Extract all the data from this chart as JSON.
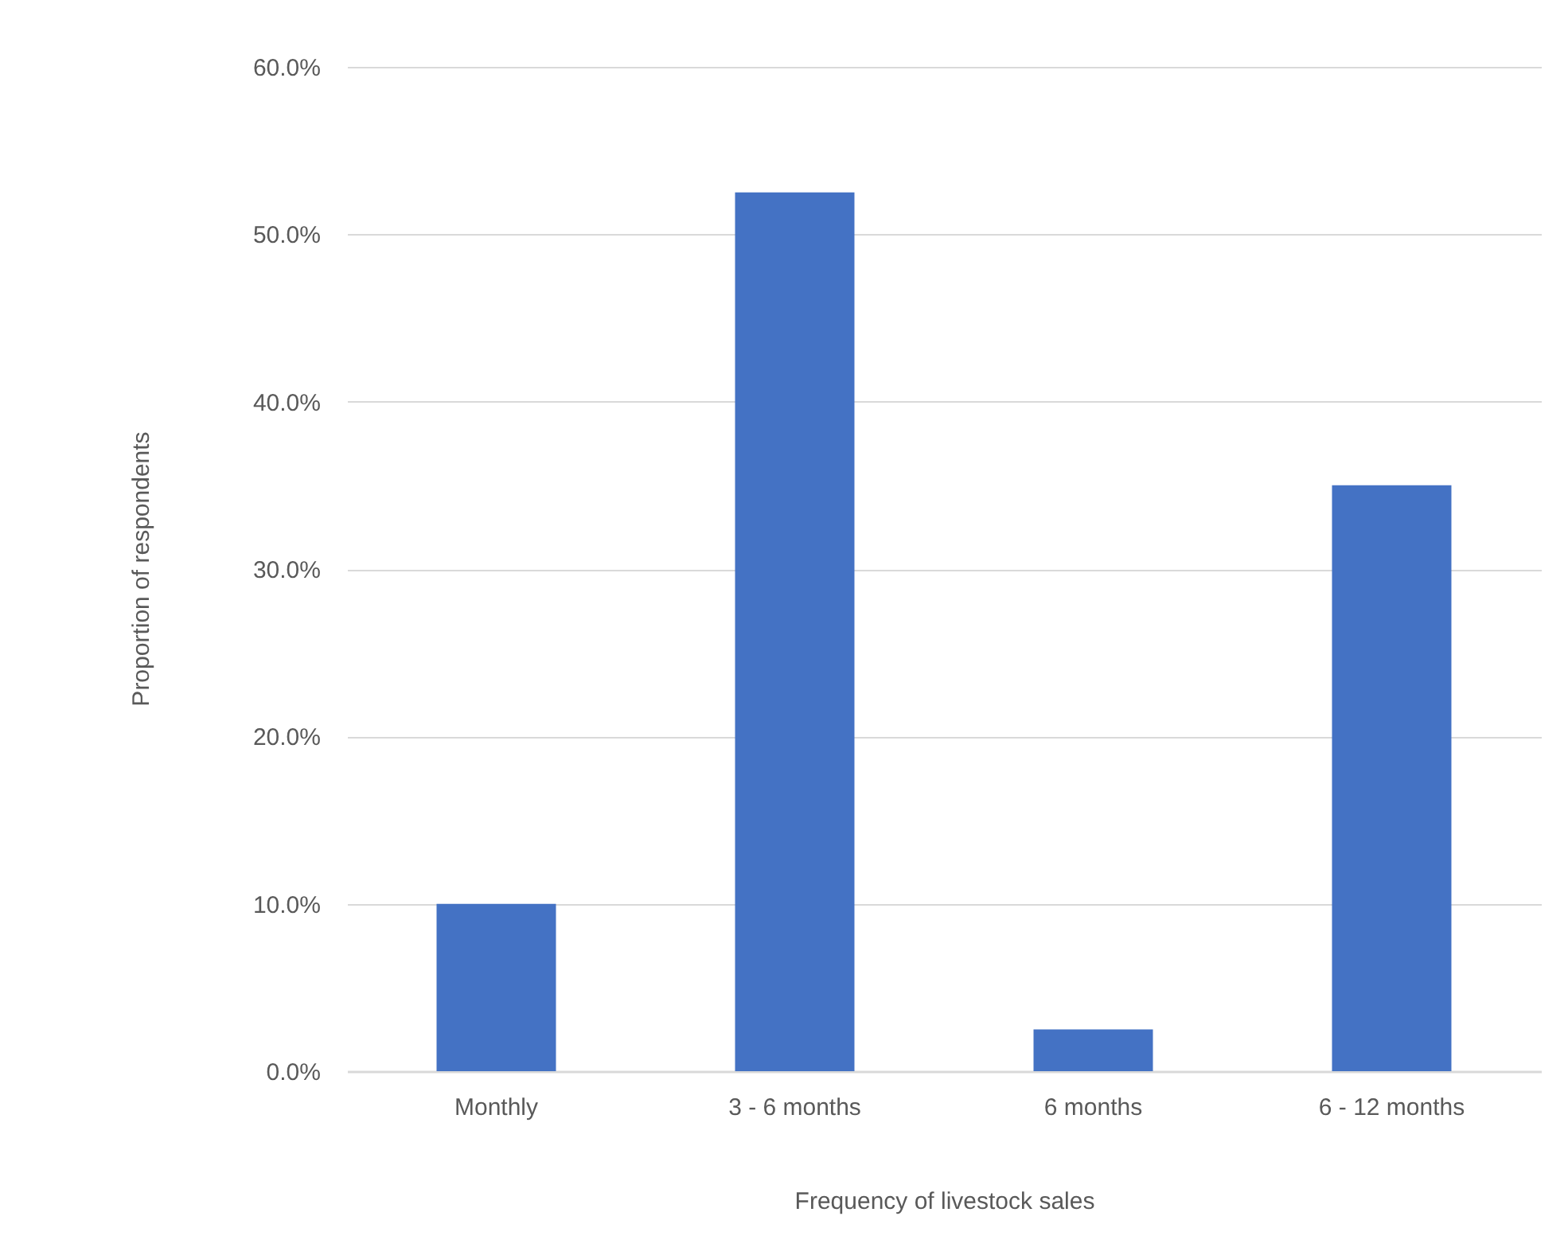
{
  "chart_data": {
    "type": "bar",
    "xlabel": "Frequency of livestock sales",
    "ylabel": "Proportion of respondents",
    "categories": [
      "Monthly",
      "3 - 6 months",
      "6 months",
      "6 - 12 months"
    ],
    "values": [
      10.0,
      52.5,
      2.5,
      35.0
    ],
    "color": "#4472c4",
    "ylim": [
      0,
      60
    ],
    "yticks": [
      {
        "value": 0,
        "label": "0.0%"
      },
      {
        "value": 10,
        "label": "10.0%"
      },
      {
        "value": 20,
        "label": "20.0%"
      },
      {
        "value": 30,
        "label": "30.0%"
      },
      {
        "value": 40,
        "label": "40.0%"
      },
      {
        "value": 50,
        "label": "50.0%"
      },
      {
        "value": 60,
        "label": "60.0%"
      }
    ],
    "grid": "y"
  }
}
